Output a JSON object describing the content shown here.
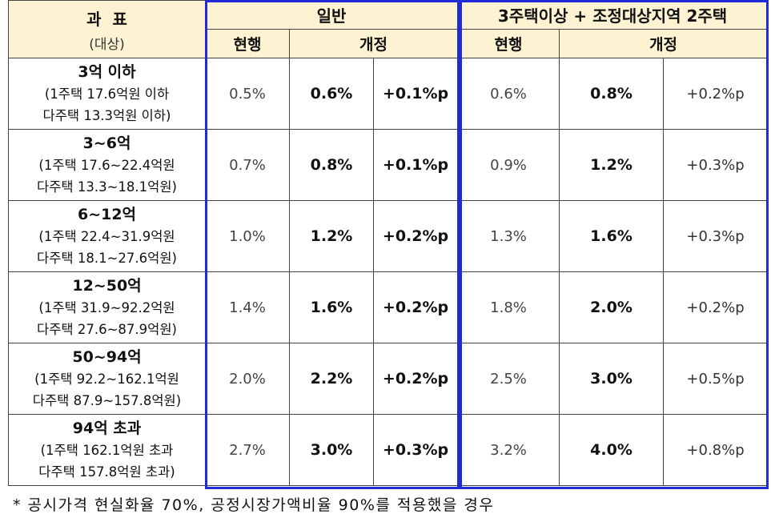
{
  "header": {
    "col_label": "과  표",
    "col_sublabel": "(대상)",
    "group_general": "일반",
    "group_multi": "3주택이상 + 조정대상지역 2주택",
    "current": "현행",
    "revised": "개정"
  },
  "rows": [
    {
      "bracket": "3억 이하",
      "line1": "(1주택 17.6억원 이하",
      "line2": "다주택 13.3억원 이하)",
      "gen_cur": "0.5%",
      "gen_new": "0.6%",
      "gen_diff": "+0.1%p",
      "multi_cur": "0.6%",
      "multi_new": "0.8%",
      "multi_diff": "+0.2%p"
    },
    {
      "bracket": "3~6억",
      "line1": "(1주택 17.6~22.4억원",
      "line2": "다주택 13.3~18.1억원)",
      "gen_cur": "0.7%",
      "gen_new": "0.8%",
      "gen_diff": "+0.1%p",
      "multi_cur": "0.9%",
      "multi_new": "1.2%",
      "multi_diff": "+0.3%p"
    },
    {
      "bracket": "6~12억",
      "line1": "(1주택 22.4~31.9억원",
      "line2": "다주택 18.1~27.6억원)",
      "gen_cur": "1.0%",
      "gen_new": "1.2%",
      "gen_diff": "+0.2%p",
      "multi_cur": "1.3%",
      "multi_new": "1.6%",
      "multi_diff": "+0.3%p"
    },
    {
      "bracket": "12~50억",
      "line1": "(1주택 31.9~92.2억원",
      "line2": "다주택 27.6~87.9억원)",
      "gen_cur": "1.4%",
      "gen_new": "1.6%",
      "gen_diff": "+0.2%p",
      "multi_cur": "1.8%",
      "multi_new": "2.0%",
      "multi_diff": "+0.2%p"
    },
    {
      "bracket": "50~94억",
      "line1": "(1주택 92.2~162.1억원",
      "line2": "다주택 87.9~157.8억원)",
      "gen_cur": "2.0%",
      "gen_new": "2.2%",
      "gen_diff": "+0.2%p",
      "multi_cur": "2.5%",
      "multi_new": "3.0%",
      "multi_diff": "+0.5%p"
    },
    {
      "bracket": "94억 초과",
      "line1": "(1주택 162.1억원 초과",
      "line2": "다주택 157.8억원 초과)",
      "gen_cur": "2.7%",
      "gen_new": "3.0%",
      "gen_diff": "+0.3%p",
      "multi_cur": "3.2%",
      "multi_new": "4.0%",
      "multi_diff": "+0.8%p"
    }
  ],
  "footnote": "* 공시가격 현실화율 70%, 공정시장가액비율 90%를 적용했을 경우",
  "colors": {
    "header_bg": "#fdf3d2",
    "highlight_border": "#1f2bd6"
  }
}
